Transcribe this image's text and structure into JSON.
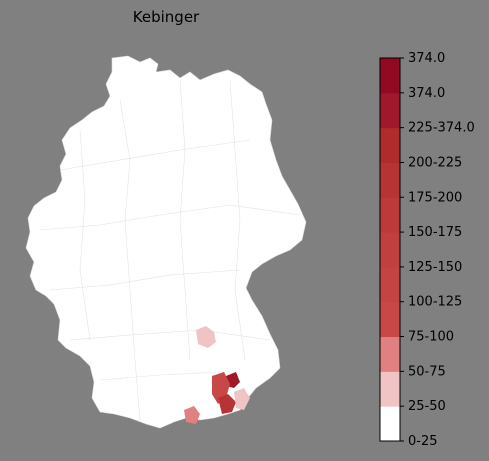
{
  "title": "Kebinger",
  "map": {
    "base_fill": "#ffffff",
    "background": "#808080",
    "highlighted_regions": [
      {
        "name": "region-a",
        "bin": "25-50"
      },
      {
        "name": "region-b",
        "bin": "225-374.0"
      },
      {
        "name": "region-c",
        "bin": "75-100"
      },
      {
        "name": "region-d",
        "bin": "175-200"
      },
      {
        "name": "region-e",
        "bin": "25-50"
      },
      {
        "name": "region-f",
        "bin": "50-75"
      }
    ]
  },
  "legend": {
    "bins": [
      {
        "label": "0-25",
        "color": "#ffffff"
      },
      {
        "label": "25-50",
        "color": "#f0c4c4"
      },
      {
        "label": "50-75",
        "color": "#e08080"
      },
      {
        "label": "75-100",
        "color": "#c84848"
      },
      {
        "label": "100-125",
        "color": "#c44444"
      },
      {
        "label": "125-150",
        "color": "#c04040"
      },
      {
        "label": "150-175",
        "color": "#bc3a3a"
      },
      {
        "label": "175-200",
        "color": "#b63434"
      },
      {
        "label": "200-225",
        "color": "#b02b2b"
      },
      {
        "label": "225-374.0",
        "color": "#a0182b"
      },
      {
        "label": "374.0",
        "color": "#920a22"
      }
    ],
    "top_label": "374.0"
  }
}
